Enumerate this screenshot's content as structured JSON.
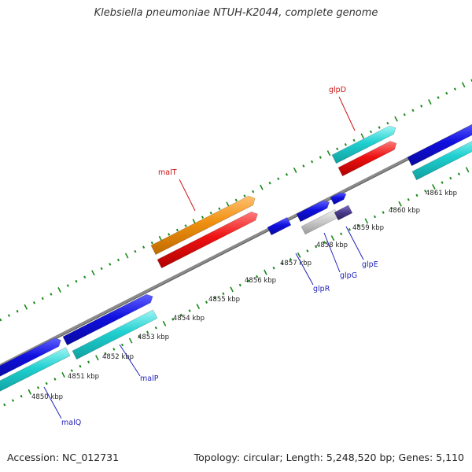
{
  "title": "Klebsiella pneumoniae NTUH-K2044, complete genome",
  "accession": "Accession: NC_012731",
  "topology": "Topology: circular; Length: 5,248,520 bp; Genes: 5,110",
  "colors": {
    "backbone": "#8a8a8a",
    "tick": "#1a8a1a",
    "blue_gene": "#1010e0",
    "cyan_gene": "#20c8c8",
    "red_gene": "#ee1111",
    "orange_gene": "#f09010",
    "gray_gene": "#c8c8c8",
    "purple_gene": "#4a3a8a",
    "label_blue": "#2222bb",
    "label_red": "#cc1111"
  },
  "coordinate_labels": [
    "4850 kbp",
    "4851 kbp",
    "4852 kbp",
    "4853 kbp",
    "4854 kbp",
    "4855 kbp",
    "4856 kbp",
    "4857 kbp",
    "4858 kbp",
    "4859 kbp",
    "4860 kbp",
    "4861 kbp"
  ],
  "gene_labels": [
    {
      "name": "malQ",
      "color": "label_blue"
    },
    {
      "name": "malP",
      "color": "label_blue"
    },
    {
      "name": "malT",
      "color": "label_red"
    },
    {
      "name": "glpR",
      "color": "label_blue"
    },
    {
      "name": "glpG",
      "color": "label_blue"
    },
    {
      "name": "glpE",
      "color": "label_blue"
    },
    {
      "name": "glpD",
      "color": "label_red"
    }
  ]
}
